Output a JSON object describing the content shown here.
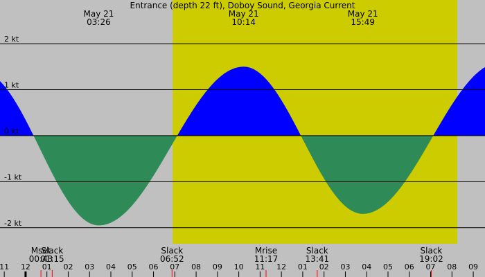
{
  "chart_data": {
    "type": "area",
    "title": "Entrance (depth 22 ft), Doboy Sound, Georgia Current",
    "y_unit": "kt",
    "ylim": [
      -2.35,
      2.95
    ],
    "y_ticks": [
      {
        "value": 2,
        "label": "2 kt"
      },
      {
        "value": 1,
        "label": "1 kt"
      },
      {
        "value": 0,
        "label": "0 kt"
      },
      {
        "value": -1,
        "label": "-1 kt"
      },
      {
        "value": -2,
        "label": "-2 kt"
      }
    ],
    "x_range_hours": [
      -13.2,
      9.55
    ],
    "x_ticks": [
      {
        "h": -13,
        "label": "11"
      },
      {
        "h": -12,
        "label": "12"
      },
      {
        "h": -11,
        "label": "01"
      },
      {
        "h": -10,
        "label": "02"
      },
      {
        "h": -9,
        "label": "03"
      },
      {
        "h": -8,
        "label": "04"
      },
      {
        "h": -7,
        "label": "05"
      },
      {
        "h": -6,
        "label": "06"
      },
      {
        "h": -5,
        "label": "07"
      },
      {
        "h": -4,
        "label": "08"
      },
      {
        "h": -3,
        "label": "09"
      },
      {
        "h": -2,
        "label": "10"
      },
      {
        "h": -1,
        "label": "11"
      },
      {
        "h": 0,
        "label": "12"
      },
      {
        "h": 1,
        "label": "01"
      },
      {
        "h": 2,
        "label": "02"
      },
      {
        "h": 3,
        "label": "03"
      },
      {
        "h": 4,
        "label": "04"
      },
      {
        "h": 5,
        "label": "05"
      },
      {
        "h": 6,
        "label": "06"
      },
      {
        "h": 7,
        "label": "07"
      },
      {
        "h": 8,
        "label": "08"
      },
      {
        "h": 9,
        "label": "09"
      }
    ],
    "day_span_hours": [
      -5.1,
      8.25
    ],
    "extremes": [
      {
        "h": -14.1,
        "kt": 1.4
      },
      {
        "h": -8.57,
        "kt": -1.95,
        "date": "May 21",
        "time": "03:26"
      },
      {
        "h": -1.77,
        "kt": 1.5,
        "date": "May 21",
        "time": "10:14"
      },
      {
        "h": 3.82,
        "kt": -1.7,
        "date": "May 21",
        "time": "15:49"
      },
      {
        "h": 10.3,
        "kt": 1.6
      }
    ],
    "events": [
      {
        "h": -11.28,
        "label": "Mset",
        "time": "00:43",
        "type": "moonset"
      },
      {
        "h": -10.75,
        "label": "Slack",
        "time": "01:15",
        "type": "slack"
      },
      {
        "h": -5.13,
        "label": "Slack",
        "time": "06:52",
        "type": "slack"
      },
      {
        "h": -0.72,
        "label": "Mrise",
        "time": "11:17",
        "type": "moonrise"
      },
      {
        "h": 1.68,
        "label": "Slack",
        "time": "13:41",
        "type": "slack"
      },
      {
        "h": 7.03,
        "label": "Slack",
        "time": "19:02",
        "type": "slack"
      }
    ],
    "colors": {
      "background": "#c0c0c0",
      "daylight": "#cccc00",
      "flood": "#0000ff",
      "ebb": "#2e8b57",
      "grid": "#000000",
      "tick_mark": "#ff0000"
    }
  }
}
